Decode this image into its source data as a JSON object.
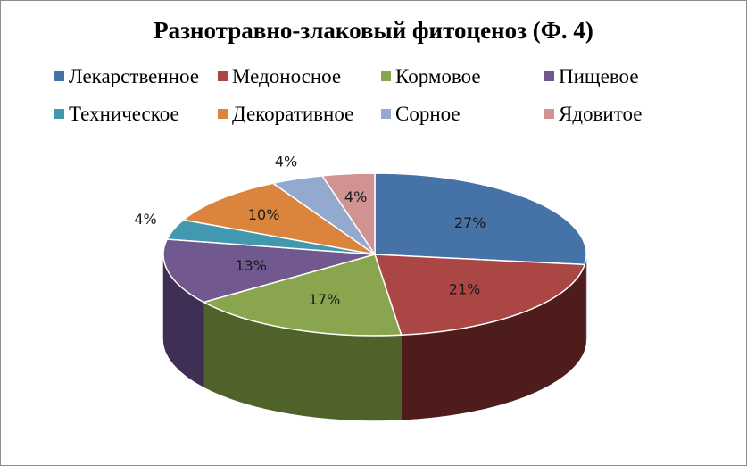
{
  "chart_data": {
    "type": "pie",
    "title": "Разнотравно-злаковый фитоценоз (Ф. 4)",
    "legend_position": "top",
    "categories": [
      "Лекарственное",
      "Медоносное",
      "Кормовое",
      "Пищевое",
      "Техническое",
      "Декоративное",
      "Сорное",
      "Ядовитое"
    ],
    "values": [
      27,
      21,
      17,
      13,
      4,
      10,
      4,
      4
    ],
    "labels": [
      "27%",
      "21%",
      "17%",
      "13%",
      "4%",
      "10%",
      "4%",
      "4%"
    ],
    "colors": [
      "#4572A7",
      "#AA4643",
      "#89A54E",
      "#71588F",
      "#4198AF",
      "#DB843D",
      "#93A9CF",
      "#D19392"
    ],
    "dark_colors": [
      "#2b4770",
      "#4e1c1b",
      "#4f6229",
      "#3f2f55",
      "#24566a",
      "#8a4d1d",
      "#566a8f",
      "#8a5453"
    ],
    "style": "3d"
  }
}
